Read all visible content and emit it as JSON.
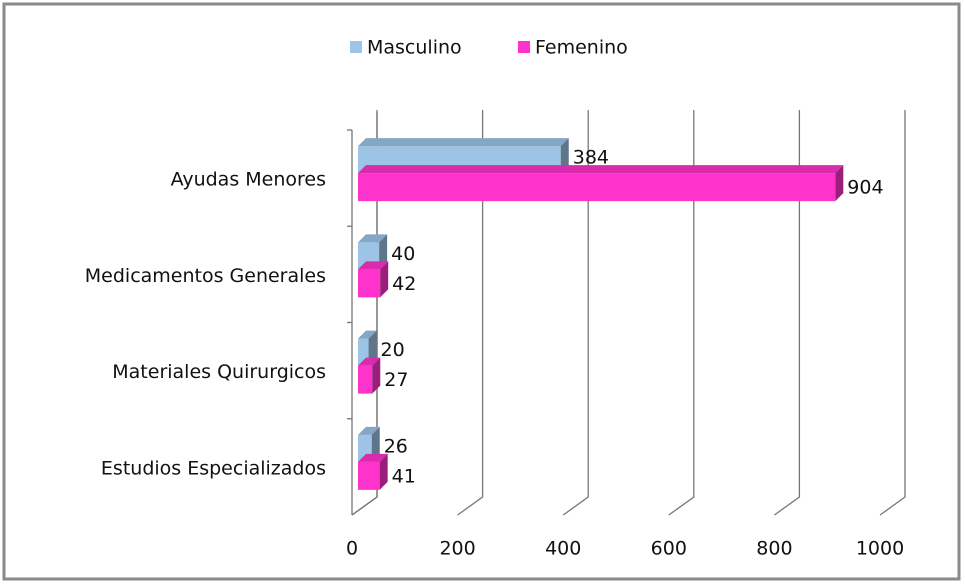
{
  "chart_data": {
    "type": "bar3d_horizontal",
    "categories": [
      "Ayudas Menores",
      "Medicamentos Generales",
      "Materiales Quirurgicos",
      "Estudios Especializados"
    ],
    "series": [
      {
        "name": "Masculino",
        "color": "#9dc3e6",
        "values": [
          384,
          40,
          20,
          26
        ]
      },
      {
        "name": "Femenino",
        "color": "#ff33cc",
        "values": [
          904,
          42,
          27,
          41
        ]
      }
    ],
    "xlim": [
      0,
      1000
    ],
    "xticks": [
      0,
      200,
      400,
      600,
      800,
      1000
    ],
    "grid": true,
    "legend": "top"
  }
}
